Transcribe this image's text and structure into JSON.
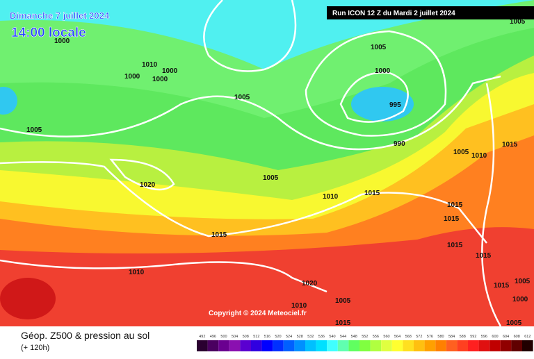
{
  "header": {
    "date": "Dimanche 7 juillet 2024",
    "time": "14:00 locale",
    "run": "Run ICON 12 Z du Mardi 2 juillet 2024"
  },
  "copyright": "Copyright © 2024 Meteociel.fr",
  "legend": {
    "title": "Géop. Z500 & pression au sol",
    "lead": "(+ 120h)",
    "levels": [
      492,
      496,
      500,
      504,
      508,
      512,
      516,
      520,
      524,
      528,
      532,
      536,
      540,
      544,
      548,
      552,
      556,
      560,
      564,
      568,
      572,
      576,
      580,
      584,
      588,
      592,
      596,
      600,
      604,
      608,
      612
    ],
    "colors": [
      "#2a0030",
      "#4a0060",
      "#6a0090",
      "#8a10b0",
      "#5a00d0",
      "#3000e0",
      "#0000ff",
      "#0030ff",
      "#0060ff",
      "#0090ff",
      "#00c0ff",
      "#00e0ff",
      "#40ffff",
      "#60ffb0",
      "#60ff60",
      "#80ff40",
      "#b0ff40",
      "#e0ff40",
      "#ffff30",
      "#ffe020",
      "#ffc010",
      "#ffa000",
      "#ff8000",
      "#ff6020",
      "#ff4020",
      "#ff2020",
      "#e01010",
      "#c00000",
      "#900000",
      "#600000",
      "#200000"
    ]
  },
  "isobars": [
    1000,
    1010,
    1000,
    1000,
    1000,
    1005,
    1005,
    1005,
    1000,
    995,
    990,
    1005,
    1010,
    1015,
    1020,
    1005,
    1010,
    1015,
    1015,
    1015,
    1015,
    1015,
    1015,
    1010,
    1020,
    1015,
    1005,
    1000,
    1005,
    1010,
    1015,
    1005,
    1005
  ]
}
